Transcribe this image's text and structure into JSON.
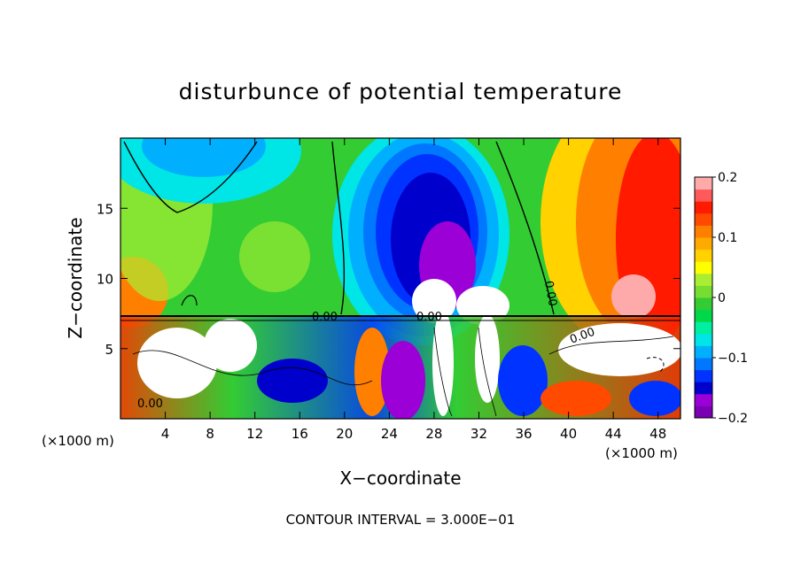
{
  "chart_data": {
    "type": "heatmap",
    "title": "disturbunce of potential temperature",
    "xlabel": "X−coordinate",
    "ylabel": "Z−coordinate",
    "x_unit_label": "(×1000 m)",
    "y_unit_label": "(×1000 m)",
    "x_ticks": [
      "4",
      "8",
      "12",
      "16",
      "20",
      "24",
      "28",
      "32",
      "36",
      "40",
      "44",
      "48"
    ],
    "x_tick_values": [
      4,
      8,
      12,
      16,
      20,
      24,
      28,
      32,
      36,
      40,
      44,
      48
    ],
    "y_ticks": [
      "5",
      "10",
      "15"
    ],
    "y_tick_values": [
      5,
      10,
      15
    ],
    "xlim": [
      0,
      50
    ],
    "ylim": [
      0,
      20
    ],
    "colorbar": {
      "labels": [
        "0.2",
        "0.1",
        "0",
        "−0.1",
        "−0.2"
      ],
      "values": [
        0.2,
        0.1,
        0,
        -0.1,
        -0.2
      ],
      "range": [
        -0.2,
        0.2
      ],
      "colors": [
        "#7b00b3",
        "#9b00d6",
        "#0000cc",
        "#0033ff",
        "#0077ff",
        "#00b0ff",
        "#00e5e5",
        "#00f0a0",
        "#00d84a",
        "#33cc33",
        "#77dd33",
        "#aaee33",
        "#ffff00",
        "#ffd200",
        "#ffaa00",
        "#ff7f00",
        "#ff4a00",
        "#ff1a00",
        "#ff5a5a",
        "#ffaaaa"
      ]
    },
    "contour_labels": [
      "0.00",
      "0.00",
      "0.00",
      "0.00",
      "0.00"
    ],
    "footer": "CONTOUR INTERVAL = 3.000E−01"
  }
}
